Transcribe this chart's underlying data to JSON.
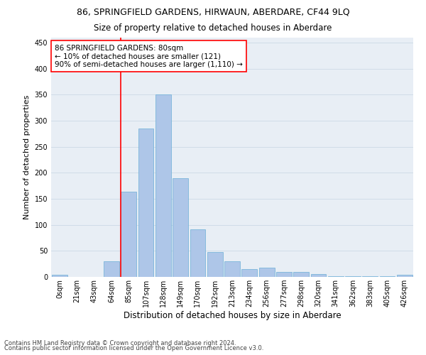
{
  "title": "86, SPRINGFIELD GARDENS, HIRWAUN, ABERDARE, CF44 9LQ",
  "subtitle": "Size of property relative to detached houses in Aberdare",
  "xlabel": "Distribution of detached houses by size in Aberdare",
  "ylabel": "Number of detached properties",
  "footnote1": "Contains HM Land Registry data © Crown copyright and database right 2024.",
  "footnote2": "Contains public sector information licensed under the Open Government Licence v3.0.",
  "bar_labels": [
    "0sqm",
    "21sqm",
    "43sqm",
    "64sqm",
    "85sqm",
    "107sqm",
    "128sqm",
    "149sqm",
    "170sqm",
    "192sqm",
    "213sqm",
    "234sqm",
    "256sqm",
    "277sqm",
    "298sqm",
    "320sqm",
    "341sqm",
    "362sqm",
    "383sqm",
    "405sqm",
    "426sqm"
  ],
  "bar_values": [
    4,
    0,
    0,
    30,
    163,
    285,
    350,
    190,
    92,
    48,
    30,
    15,
    18,
    10,
    10,
    5,
    2,
    2,
    2,
    2,
    4
  ],
  "bar_color": "#aec6e8",
  "bar_edge_color": "#6aaed6",
  "vline_x_index": 4,
  "vline_color": "red",
  "annotation_text": "86 SPRINGFIELD GARDENS: 80sqm\n← 10% of detached houses are smaller (121)\n90% of semi-detached houses are larger (1,110) →",
  "annotation_box_color": "white",
  "annotation_box_edge_color": "red",
  "ylim": [
    0,
    460
  ],
  "yticks": [
    0,
    50,
    100,
    150,
    200,
    250,
    300,
    350,
    400,
    450
  ],
  "grid_color": "#d0dce8",
  "background_color": "#e8eef5",
  "title_fontsize": 9,
  "subtitle_fontsize": 8.5,
  "annotation_fontsize": 7.5,
  "ylabel_fontsize": 8,
  "xlabel_fontsize": 8.5,
  "tick_fontsize": 7,
  "footnote_fontsize": 6
}
